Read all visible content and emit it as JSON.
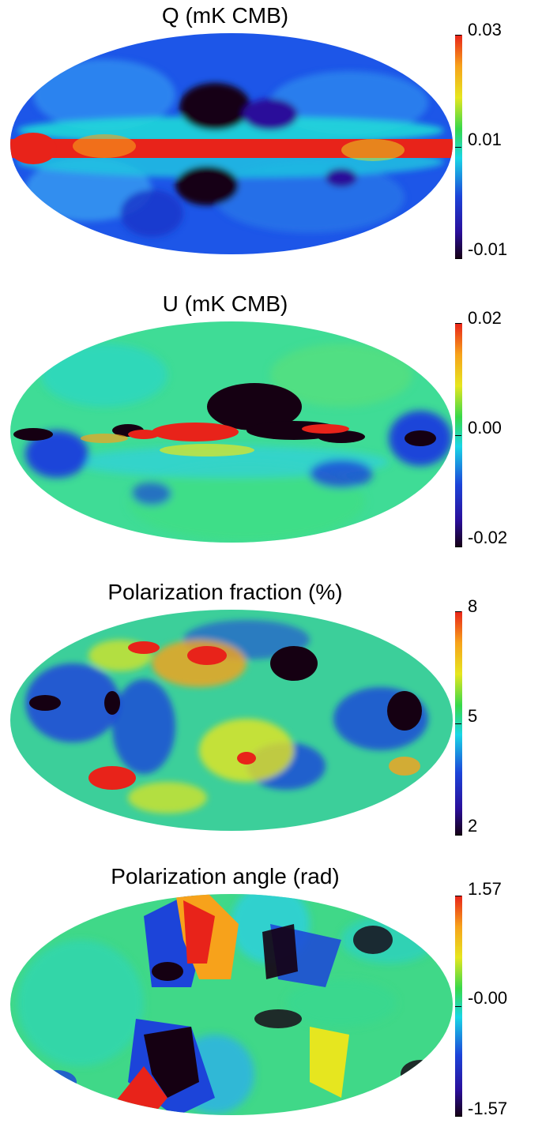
{
  "panels": [
    {
      "title": "Q (mK CMB)",
      "colorbar": {
        "max": "0.03",
        "mid": "0.01",
        "min": "-0.01"
      }
    },
    {
      "title": "U (mK CMB)",
      "colorbar": {
        "max": "0.02",
        "mid": "0.00",
        "min": "-0.02"
      }
    },
    {
      "title": "Polarization fraction (%)",
      "colorbar": {
        "max": "8",
        "mid": "5",
        "min": "2"
      }
    },
    {
      "title": "Polarization angle (rad)",
      "colorbar": {
        "max": "1.57",
        "mid": "-0.00",
        "min": "-1.57"
      }
    }
  ],
  "colors": {
    "cb_top": "#e8231a",
    "cb_orange": "#f7a21b",
    "cb_yellow": "#e6e61f",
    "cb_green": "#36d84a",
    "cb_cyan": "#19d6e6",
    "cb_blue": "#1c44d9",
    "cb_indigo": "#2a0e9a",
    "cb_bottom": "#150012"
  }
}
